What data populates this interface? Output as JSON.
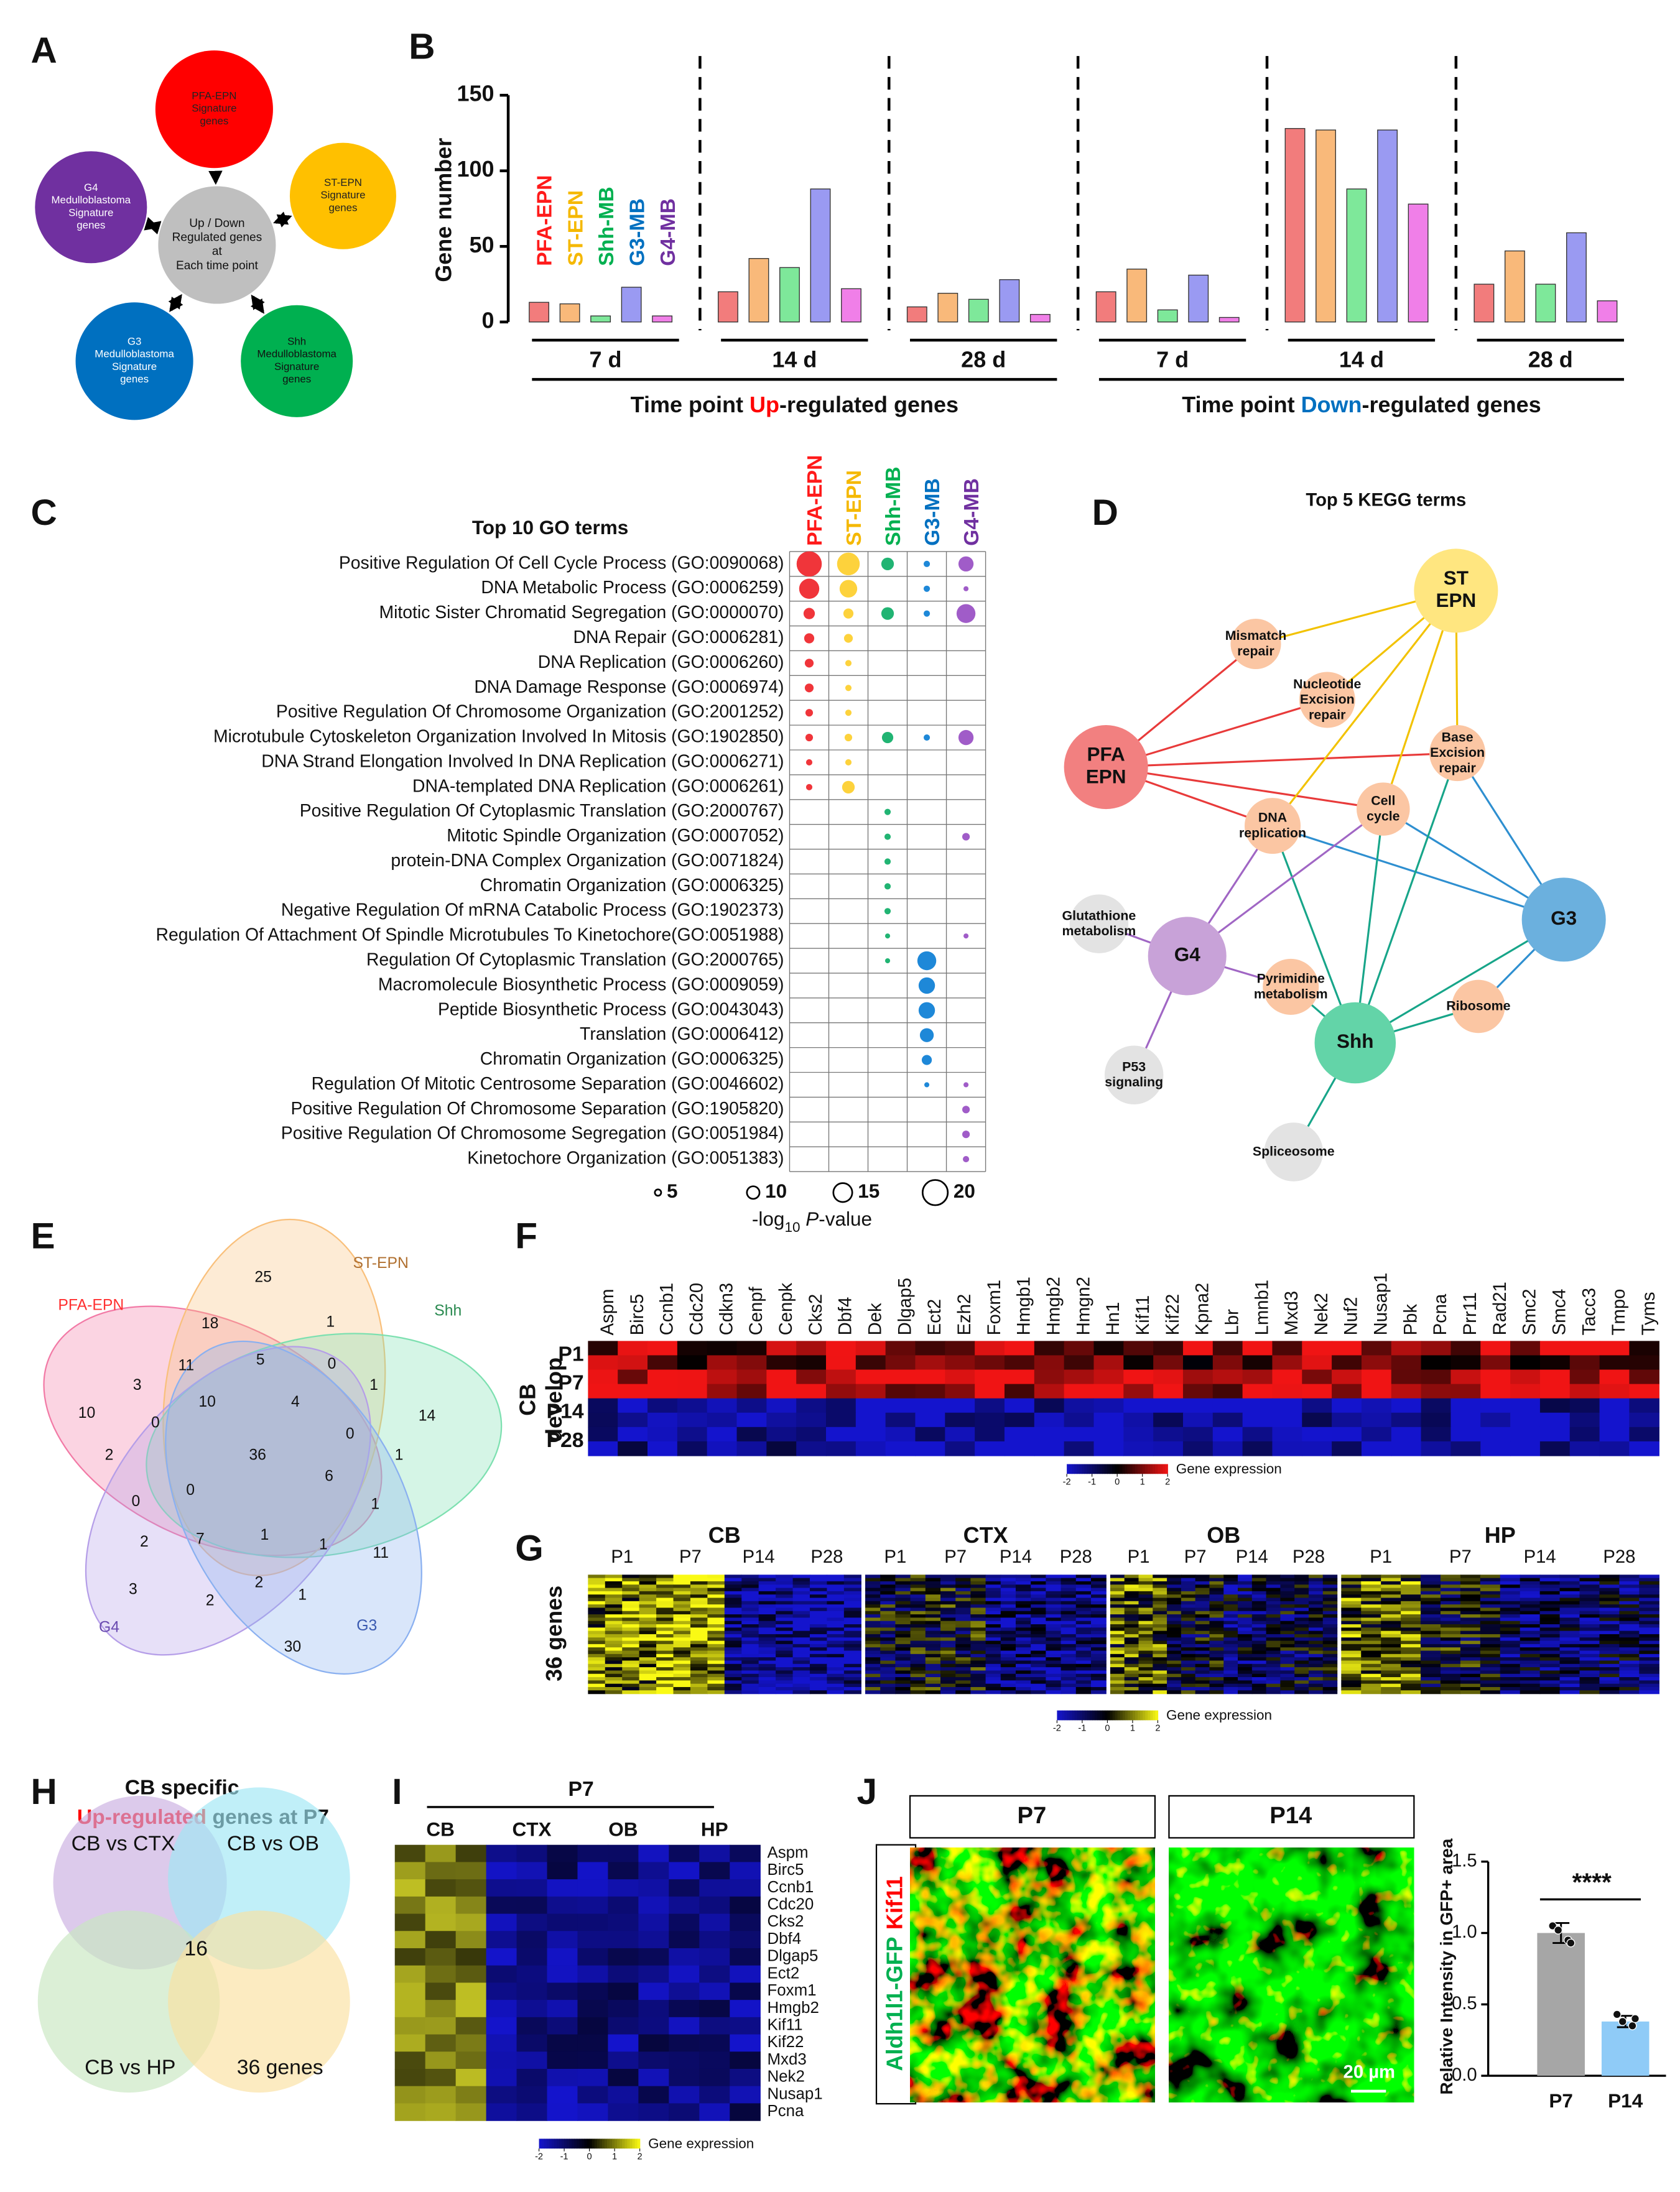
{
  "panel_labels": [
    "A",
    "B",
    "C",
    "D",
    "E",
    "F",
    "G",
    "H",
    "I",
    "J"
  ],
  "panel_a": {
    "center": [
      "Up / Down",
      "Regulated  genes",
      "at",
      "Each  time  point"
    ],
    "nodes": [
      {
        "label": [
          "PFA-EPN",
          "Signature",
          "genes"
        ],
        "color": "#ff0000"
      },
      {
        "label": [
          "ST-EPN",
          "Signature",
          "genes"
        ],
        "color": "#ffc000"
      },
      {
        "label": [
          "Shh",
          "Medulloblastoma",
          "Signature",
          "genes"
        ],
        "color": "#00b050"
      },
      {
        "label": [
          "G3",
          "Medulloblastoma",
          "Signature",
          "genes"
        ],
        "color": "#0070c0"
      },
      {
        "label": [
          "G4",
          "Medulloblastoma",
          "Signature",
          "genes"
        ],
        "color": "#7030a0"
      }
    ]
  },
  "chart_data": [
    {
      "type": "bar",
      "y_label": "Gene number",
      "categories": [
        "7 d",
        "14 d",
        "28 d",
        "7 d",
        "14 d",
        "28 d"
      ],
      "groups": [
        {
          "parts": [
            "Time point ",
            "Up",
            "-regulated genes"
          ],
          "highlight_color": "#ff0000"
        },
        {
          "parts": [
            "Time point ",
            "Down",
            "-regulated genes"
          ],
          "highlight_color": "#0070c0"
        }
      ],
      "series": [
        {
          "name": "PFA-EPN",
          "color": "#f27c7c",
          "label_color": "#ff1a1a",
          "values": [
            13,
            20,
            10,
            20,
            128,
            25
          ]
        },
        {
          "name": "ST-EPN",
          "color": "#f9b97a",
          "label_color": "#f5b800",
          "values": [
            12,
            42,
            19,
            35,
            127,
            47
          ]
        },
        {
          "name": "Shh-MB",
          "color": "#7ee89a",
          "label_color": "#00b050",
          "values": [
            4,
            36,
            15,
            8,
            88,
            25
          ]
        },
        {
          "name": "G3-MB",
          "color": "#9a9af2",
          "label_color": "#0070c0",
          "values": [
            23,
            88,
            28,
            31,
            127,
            59
          ]
        },
        {
          "name": "G4-MB",
          "color": "#f07fe8",
          "label_color": "#7030a0",
          "values": [
            4,
            22,
            5,
            3,
            78,
            14
          ]
        }
      ],
      "ylim": [
        0,
        150
      ],
      "yticks": [
        0,
        50,
        100,
        150
      ]
    },
    {
      "type": "dot",
      "title": "Top 10 GO terms",
      "columns": [
        {
          "name": "PFA-EPN",
          "color": "#f0353a",
          "label_color": "#ff1a1a"
        },
        {
          "name": "ST-EPN",
          "color": "#fdd23c",
          "label_color": "#f5b800"
        },
        {
          "name": "Shh-MB",
          "color": "#21b473",
          "label_color": "#00b050"
        },
        {
          "name": "G3-MB",
          "color": "#1e88d8",
          "label_color": "#0070c0"
        },
        {
          "name": "G4-MB",
          "color": "#a05cc8",
          "label_color": "#7030a0"
        }
      ],
      "rows": [
        "Positive Regulation Of Cell Cycle Process (GO:0090068)",
        "DNA Metabolic Process (GO:0006259)",
        "Mitotic Sister Chromatid Segregation (GO:0000070)",
        "DNA Repair (GO:0006281)",
        "DNA Replication (GO:0006260)",
        "DNA Damage Response (GO:0006974)",
        "Positive Regulation Of Chromosome Organization (GO:2001252)",
        "Microtubule Cytoskeleton Organization Involved In Mitosis (GO:1902850)",
        "DNA Strand Elongation Involved In DNA Replication (GO:0006271)",
        "DNA-templated DNA Replication (GO:0006261)",
        "Positive Regulation Of Cytoplasmic Translation (GO:2000767)",
        "Mitotic Spindle Organization (GO:0007052)",
        "protein-DNA Complex Organization (GO:0071824)",
        "Chromatin Organization (GO:0006325)",
        "Negative Regulation Of mRNA Catabolic Process (GO:1902373)",
        "Regulation Of Attachment Of Spindle Microtubules To Kinetochore(GO:0051988)",
        "Regulation Of Cytoplasmic Translation (GO:2000765)",
        "Macromolecule Biosynthetic Process (GO:0009059)",
        "Peptide Biosynthetic Process (GO:0043043)",
        "Translation (GO:0006412)",
        "Chromatin Organization (GO:0006325)",
        "Regulation Of Mitotic Centrosome Separation (GO:0046602)",
        "Positive Regulation Of Chromosome Separation (GO:1905820)",
        "Positive Regulation Of Chromosome Segregation (GO:0051984)",
        "Kinetochore Organization (GO:0051383)"
      ],
      "values": [
        [
          20,
          18,
          10,
          5,
          12
        ],
        [
          16,
          14,
          null,
          5,
          4
        ],
        [
          9,
          8,
          10,
          5,
          15
        ],
        [
          8,
          7,
          null,
          null,
          null
        ],
        [
          7,
          5,
          null,
          null,
          null
        ],
        [
          7,
          5,
          null,
          null,
          null
        ],
        [
          6,
          5,
          null,
          null,
          null
        ],
        [
          6,
          6,
          9,
          5,
          12
        ],
        [
          5,
          5,
          null,
          null,
          null
        ],
        [
          5,
          10,
          null,
          null,
          null
        ],
        [
          null,
          null,
          5,
          null,
          null
        ],
        [
          null,
          null,
          5,
          null,
          6
        ],
        [
          null,
          null,
          5,
          null,
          null
        ],
        [
          null,
          null,
          5,
          null,
          null
        ],
        [
          null,
          null,
          5,
          null,
          null
        ],
        [
          null,
          null,
          4,
          null,
          4
        ],
        [
          null,
          null,
          4,
          15,
          null
        ],
        [
          null,
          null,
          null,
          13,
          null
        ],
        [
          null,
          null,
          null,
          13,
          null
        ],
        [
          null,
          null,
          null,
          11,
          null
        ],
        [
          null,
          null,
          null,
          8,
          null
        ],
        [
          null,
          null,
          null,
          4,
          4
        ],
        [
          null,
          null,
          null,
          null,
          6
        ],
        [
          null,
          null,
          null,
          null,
          6
        ],
        [
          null,
          null,
          null,
          null,
          5
        ]
      ],
      "size_legend": [
        5,
        10,
        15,
        20
      ],
      "size_label": [
        "-log",
        "10",
        " P",
        "-value"
      ]
    },
    {
      "type": "bar",
      "y_label": "Relative Intensity in GFP+ area",
      "categories": [
        "P7",
        "P14"
      ],
      "values": [
        1.0,
        0.38
      ],
      "errors": [
        0.07,
        0.04
      ],
      "points": [
        [
          1.05,
          0.95,
          1.02,
          0.93
        ],
        [
          0.43,
          0.35,
          0.38,
          0.4
        ]
      ],
      "colors": [
        "#a6a6a6",
        "#8fcbf7"
      ],
      "ylim": [
        0,
        1.5
      ],
      "yticks": [
        {
          "value": 0,
          "label": "0.0"
        },
        0.5,
        {
          "value": 1,
          "label": "1.0"
        },
        1.5
      ],
      "annotation": "****"
    }
  ],
  "panel_d": {
    "title": "Top 5 KEGG terms",
    "nodes": [
      {
        "label": [
          "ST",
          "EPN"
        ],
        "color": "#ffe680"
      },
      {
        "label": [
          "PFA",
          "EPN"
        ],
        "color": "#f28080"
      },
      {
        "label": [
          "G3"
        ],
        "color": "#6bb0de"
      },
      {
        "label": [
          "G4"
        ],
        "color": "#c8a2d8"
      },
      {
        "label": [
          "Shh"
        ],
        "color": "#63d4a8"
      },
      {
        "label": [
          "Mismatch",
          "repair"
        ],
        "color": "#fbc6a3"
      },
      {
        "label": [
          "Nucleotide",
          "Excision",
          "repair"
        ],
        "color": "#fbc6a3"
      },
      {
        "label": [
          "Base",
          "Excision",
          "repair"
        ],
        "color": "#fbc6a3"
      },
      {
        "label": [
          "DNA",
          "replication"
        ],
        "color": "#fbc6a3"
      },
      {
        "label": [
          "Cell",
          "cycle"
        ],
        "color": "#fbc6a3"
      },
      {
        "label": [
          "Glutathione",
          "metabolism"
        ],
        "color": "#e3e3e3"
      },
      {
        "label": [
          "Pyrimidine",
          "metabolism"
        ],
        "color": "#fbc6a3"
      },
      {
        "label": [
          "Ribosome"
        ],
        "color": "#fbc6a3"
      },
      {
        "label": [
          "P53",
          "signaling"
        ],
        "color": "#e3e3e3"
      },
      {
        "label": [
          "Spliceosome"
        ],
        "color": "#e3e3e3"
      }
    ]
  },
  "panel_e": {
    "sets": [
      "PFA-EPN",
      "ST-EPN",
      "Shh",
      "G4",
      "G3"
    ],
    "counts": [
      25,
      18,
      1,
      3,
      11,
      5,
      0,
      1,
      14,
      10,
      10,
      4,
      0,
      0,
      36,
      2,
      6,
      1,
      0,
      0,
      1,
      2,
      7,
      1,
      1,
      11,
      3,
      2,
      2,
      1,
      30
    ]
  },
  "panel_f": {
    "side_label": [
      "CB",
      "develop"
    ],
    "rows": [
      "P1",
      "P7",
      "P14",
      "P28"
    ],
    "genes": [
      "Aspm",
      "Birc5",
      "Ccnb1",
      "Cdc20",
      "Cdkn3",
      "Cenpf",
      "Cenpk",
      "Cks2",
      "Dbf4",
      "Dek",
      "Dlgap5",
      "Ect2",
      "Ezh2",
      "Foxm1",
      "Hmgb1",
      "Hmgb2",
      "Hmgn2",
      "Hn1",
      "Kif11",
      "Kif22",
      "Kpna2",
      "Lbr",
      "Lmnb1",
      "Mxd3",
      "Nek2",
      "Nuf2",
      "Nusap1",
      "Pbk",
      "Pcna",
      "Prr11",
      "Rad21",
      "Smc2",
      "Smc4",
      "Tacc3",
      "Tmpo",
      "Tyms"
    ],
    "colorbar": {
      "ticks": [
        -2,
        -1,
        0,
        1,
        2
      ],
      "label": "Gene expression"
    }
  },
  "panel_g": {
    "row_label": "36 genes",
    "tissues": [
      {
        "name": "CB",
        "timepoints": [
          "P1",
          "P7",
          "P14",
          "P28"
        ]
      },
      {
        "name": "CTX",
        "timepoints": [
          "P1",
          "P7",
          "P14",
          "P28"
        ]
      },
      {
        "name": "OB",
        "timepoints": [
          "P1",
          "P7",
          "P14",
          "P28"
        ]
      },
      {
        "name": "HP",
        "timepoints": [
          "P1",
          "P7",
          "P14",
          "P28"
        ]
      }
    ],
    "colorbar": {
      "ticks": [
        -2,
        -1,
        0,
        1,
        2
      ],
      "label": "Gene expression"
    }
  },
  "panel_h": {
    "title": "CB specific",
    "subtitle_parts": [
      "Up-regulated",
      " genes at P7"
    ],
    "sets": [
      "CB vs CTX",
      "CB vs OB",
      "CB vs HP",
      "36 genes"
    ],
    "center": 16
  },
  "panel_i": {
    "timepoint": "P7",
    "tissues": [
      "CB",
      "CTX",
      "OB",
      "HP"
    ],
    "genes": [
      "Aspm",
      "Birc5",
      "Ccnb1",
      "Cdc20",
      "Cks2",
      "Dbf4",
      "Dlgap5",
      "Ect2",
      "Foxm1",
      "Hmgb2",
      "Kif11",
      "Kif22",
      "Mxd3",
      "Nek2",
      "Nusap1",
      "Pcna"
    ],
    "colorbar": {
      "ticks": [
        -2,
        -1,
        0,
        1,
        2
      ],
      "label": "Gene expression"
    }
  },
  "panel_j": {
    "stain": [
      "Aldh1l1-GFP",
      "Kif11"
    ],
    "images": [
      "P7",
      "P14"
    ],
    "scale_bar": "20 µm"
  }
}
